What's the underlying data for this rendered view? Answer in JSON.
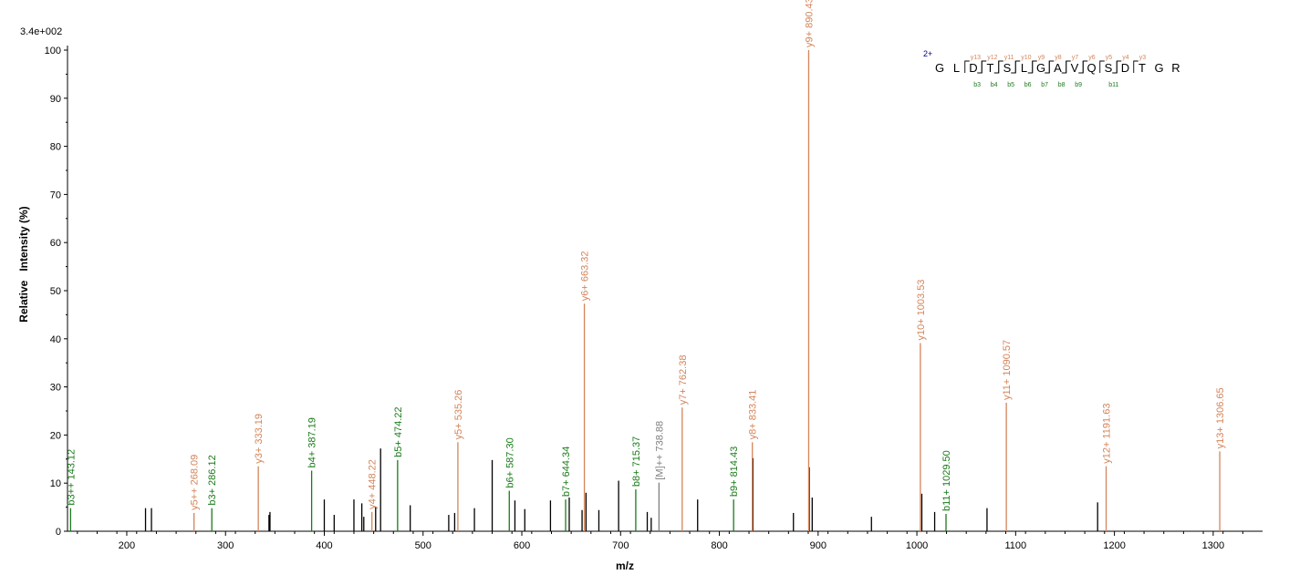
{
  "chart_data": {
    "type": "bar",
    "scale_label": "3.4e+002",
    "xlabel": "m/z",
    "ylabel": "Relative   Intensity (%)",
    "xlim": [
      140,
      1350
    ],
    "ylim": [
      0,
      100
    ],
    "xticks": [
      200,
      300,
      400,
      500,
      600,
      700,
      800,
      900,
      1000,
      1100,
      1200,
      1300
    ],
    "yticks": [
      0,
      10,
      20,
      30,
      40,
      50,
      60,
      70,
      80,
      90,
      100
    ],
    "colors": {
      "b": "#1a7a1a",
      "y": "#d4845a",
      "m": "#808080",
      "other": "#000000"
    },
    "annotated_peaks": [
      {
        "label": "b3++ 143.12",
        "mz": 143.12,
        "intensity": 4.8,
        "ion": "b"
      },
      {
        "label": "y5++ 268.09",
        "mz": 268.09,
        "intensity": 3.8,
        "ion": "y"
      },
      {
        "label": "b3+ 286.12",
        "mz": 286.12,
        "intensity": 4.8,
        "ion": "b"
      },
      {
        "label": "y3+ 333.19",
        "mz": 333.19,
        "intensity": 13.5,
        "ion": "y"
      },
      {
        "label": "b4+ 387.19",
        "mz": 387.19,
        "intensity": 12.6,
        "ion": "b"
      },
      {
        "label": "y4+ 448.22",
        "mz": 448.22,
        "intensity": 4.0,
        "ion": "y"
      },
      {
        "label": "b5+ 474.22",
        "mz": 474.22,
        "intensity": 14.8,
        "ion": "b"
      },
      {
        "label": "y5+ 535.26",
        "mz": 535.26,
        "intensity": 18.5,
        "ion": "y"
      },
      {
        "label": "b6+ 587.30",
        "mz": 587.3,
        "intensity": 8.4,
        "ion": "b"
      },
      {
        "label": "b7+ 644.34",
        "mz": 644.34,
        "intensity": 6.6,
        "ion": "b"
      },
      {
        "label": "y6+ 663.32",
        "mz": 663.32,
        "intensity": 47.3,
        "ion": "y"
      },
      {
        "label": "b8+ 715.37",
        "mz": 715.37,
        "intensity": 8.7,
        "ion": "b"
      },
      {
        "label": "[M]++ 738.88",
        "mz": 738.88,
        "intensity": 10.1,
        "ion": "m"
      },
      {
        "label": "y7+ 762.38",
        "mz": 762.38,
        "intensity": 25.7,
        "ion": "y"
      },
      {
        "label": "b9+ 814.43",
        "mz": 814.43,
        "intensity": 6.6,
        "ion": "b"
      },
      {
        "label": "y8+ 833.41",
        "mz": 833.41,
        "intensity": 18.5,
        "ion": "y"
      },
      {
        "label": "y9+ 890.43",
        "mz": 890.43,
        "intensity": 100,
        "ion": "y"
      },
      {
        "label": "y10+ 1003.53",
        "mz": 1003.53,
        "intensity": 39.1,
        "ion": "y"
      },
      {
        "label": "b11+ 1029.50",
        "mz": 1029.5,
        "intensity": 3.6,
        "ion": "b"
      },
      {
        "label": "y11+ 1090.57",
        "mz": 1090.57,
        "intensity": 26.7,
        "ion": "y"
      },
      {
        "label": "y12+ 1191.63",
        "mz": 1191.63,
        "intensity": 13.5,
        "ion": "y"
      },
      {
        "label": "y13+ 1306.65",
        "mz": 1306.65,
        "intensity": 16.6,
        "ion": "y"
      }
    ],
    "other_peaks": [
      {
        "mz": 219,
        "intensity": 4.8
      },
      {
        "mz": 225,
        "intensity": 4.8
      },
      {
        "mz": 344,
        "intensity": 3.4
      },
      {
        "mz": 345,
        "intensity": 4.0
      },
      {
        "mz": 400,
        "intensity": 6.6
      },
      {
        "mz": 410,
        "intensity": 3.4
      },
      {
        "mz": 430,
        "intensity": 6.6
      },
      {
        "mz": 438,
        "intensity": 5.8
      },
      {
        "mz": 440,
        "intensity": 3.0
      },
      {
        "mz": 452,
        "intensity": 5.0
      },
      {
        "mz": 457,
        "intensity": 17.2
      },
      {
        "mz": 487,
        "intensity": 5.4
      },
      {
        "mz": 526,
        "intensity": 3.4
      },
      {
        "mz": 532,
        "intensity": 3.8
      },
      {
        "mz": 552,
        "intensity": 4.8
      },
      {
        "mz": 570,
        "intensity": 14.8
      },
      {
        "mz": 593,
        "intensity": 6.4
      },
      {
        "mz": 603,
        "intensity": 4.6
      },
      {
        "mz": 629,
        "intensity": 6.4
      },
      {
        "mz": 648,
        "intensity": 7.0
      },
      {
        "mz": 661,
        "intensity": 4.4
      },
      {
        "mz": 665,
        "intensity": 8.0
      },
      {
        "mz": 678,
        "intensity": 4.4
      },
      {
        "mz": 698,
        "intensity": 10.5
      },
      {
        "mz": 727,
        "intensity": 4.0
      },
      {
        "mz": 731,
        "intensity": 2.8
      },
      {
        "mz": 778,
        "intensity": 6.6
      },
      {
        "mz": 834,
        "intensity": 15.2
      },
      {
        "mz": 875,
        "intensity": 3.8
      },
      {
        "mz": 891,
        "intensity": 13.3
      },
      {
        "mz": 894,
        "intensity": 7.0
      },
      {
        "mz": 954,
        "intensity": 3.0
      },
      {
        "mz": 1005,
        "intensity": 7.8
      },
      {
        "mz": 1018,
        "intensity": 4.0
      },
      {
        "mz": 1071,
        "intensity": 4.8
      },
      {
        "mz": 1183,
        "intensity": 6.0
      }
    ],
    "sequence": {
      "charge": "2+",
      "residues": [
        "G",
        "L",
        "D",
        "T",
        "S",
        "L",
        "G",
        "A",
        "V",
        "Q",
        "S",
        "D",
        "T",
        "G",
        "R"
      ],
      "y_ions": [
        {
          "label": "y13",
          "after_residue": 2
        },
        {
          "label": "y12",
          "after_residue": 3
        },
        {
          "label": "y11",
          "after_residue": 4
        },
        {
          "label": "y10",
          "after_residue": 5
        },
        {
          "label": "y9",
          "after_residue": 6
        },
        {
          "label": "y8",
          "after_residue": 7
        },
        {
          "label": "y7",
          "after_residue": 8
        },
        {
          "label": "y6",
          "after_residue": 9
        },
        {
          "label": "y5",
          "after_residue": 10
        },
        {
          "label": "y4",
          "after_residue": 11
        },
        {
          "label": "y3",
          "after_residue": 12
        }
      ],
      "b_ions": [
        {
          "label": "b3",
          "after_residue": 3
        },
        {
          "label": "b4",
          "after_residue": 4
        },
        {
          "label": "b5",
          "after_residue": 5
        },
        {
          "label": "b6",
          "after_residue": 6
        },
        {
          "label": "b7",
          "after_residue": 7
        },
        {
          "label": "b8",
          "after_residue": 8
        },
        {
          "label": "b9",
          "after_residue": 9
        },
        {
          "label": "b11",
          "after_residue": 11
        }
      ]
    }
  }
}
